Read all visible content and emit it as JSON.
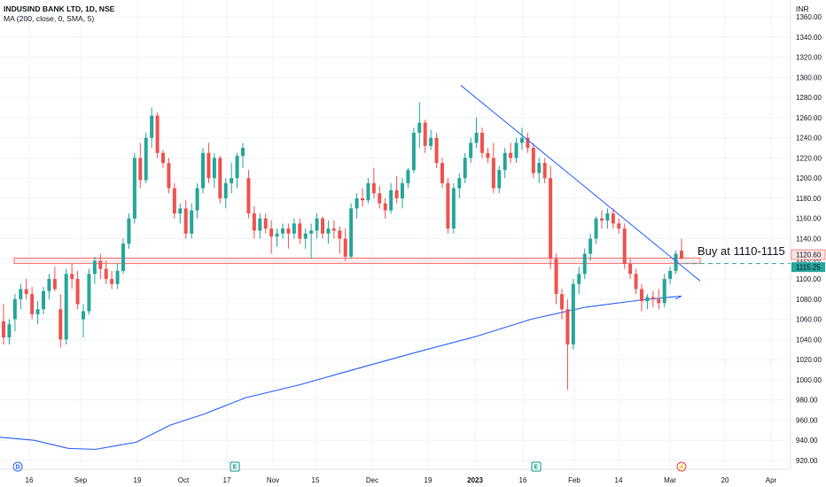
{
  "header": {
    "symbol_line": "INDUSIND BANK LTD, 1D, NSE",
    "indicator_line": "MA (200, close, 0, SMA, 5)"
  },
  "currency": "INR",
  "annotation": {
    "text": "Buy at 1110-1115",
    "price_tags": [
      "1120.60",
      "1115.25"
    ]
  },
  "events": [
    {
      "label": "D",
      "color": "#2962ff"
    },
    {
      "label": "E",
      "color": "#089981"
    },
    {
      "label": "E",
      "color": "#089981"
    },
    {
      "label": "⚡",
      "color": "#f23645"
    }
  ],
  "colors": {
    "up": "#26a69a",
    "down": "#ef5350",
    "ma": "#2962ff",
    "trendline": "#2962ff",
    "zone_fill": "#fce4e4",
    "zone_border": "#ef5350",
    "dashed": "#26a69a"
  },
  "chart_data": {
    "type": "candlestick",
    "title": "INDUSIND BANK LTD, 1D, NSE",
    "ylim": [
      912,
      1368
    ],
    "y_ticks": [
      920,
      940,
      960,
      980,
      1000,
      1020,
      1040,
      1060,
      1080,
      1100,
      1120,
      1140,
      1160,
      1180,
      1200,
      1220,
      1240,
      1260,
      1280,
      1300,
      1320,
      1340,
      1360
    ],
    "x_tick_labels": [
      "16",
      "Sep",
      "19",
      "Oct",
      "17",
      "Nov",
      "15",
      "Dec",
      "19",
      "2023",
      "16",
      "Feb",
      "14",
      "Mar",
      "20",
      "Apr"
    ],
    "grid": true,
    "candles": [
      {
        "o": 1058,
        "h": 1075,
        "l": 1035,
        "c": 1042
      },
      {
        "o": 1042,
        "h": 1060,
        "l": 1035,
        "c": 1055
      },
      {
        "o": 1060,
        "h": 1085,
        "l": 1048,
        "c": 1080
      },
      {
        "o": 1080,
        "h": 1095,
        "l": 1070,
        "c": 1090
      },
      {
        "o": 1090,
        "h": 1100,
        "l": 1080,
        "c": 1085
      },
      {
        "o": 1085,
        "h": 1092,
        "l": 1060,
        "c": 1065
      },
      {
        "o": 1065,
        "h": 1078,
        "l": 1055,
        "c": 1070
      },
      {
        "o": 1070,
        "h": 1092,
        "l": 1065,
        "c": 1088
      },
      {
        "o": 1088,
        "h": 1105,
        "l": 1080,
        "c": 1100
      },
      {
        "o": 1100,
        "h": 1112,
        "l": 1088,
        "c": 1090
      },
      {
        "o": 1070,
        "h": 1085,
        "l": 1032,
        "c": 1040
      },
      {
        "o": 1040,
        "h": 1110,
        "l": 1035,
        "c": 1105
      },
      {
        "o": 1105,
        "h": 1115,
        "l": 1090,
        "c": 1100
      },
      {
        "o": 1100,
        "h": 1108,
        "l": 1070,
        "c": 1075
      },
      {
        "o": 1060,
        "h": 1075,
        "l": 1042,
        "c": 1068
      },
      {
        "o": 1068,
        "h": 1110,
        "l": 1065,
        "c": 1105
      },
      {
        "o": 1105,
        "h": 1122,
        "l": 1095,
        "c": 1118
      },
      {
        "o": 1118,
        "h": 1125,
        "l": 1100,
        "c": 1110
      },
      {
        "o": 1110,
        "h": 1118,
        "l": 1095,
        "c": 1100
      },
      {
        "o": 1100,
        "h": 1108,
        "l": 1090,
        "c": 1095
      },
      {
        "o": 1095,
        "h": 1115,
        "l": 1090,
        "c": 1108
      },
      {
        "o": 1108,
        "h": 1140,
        "l": 1105,
        "c": 1135
      },
      {
        "o": 1135,
        "h": 1165,
        "l": 1130,
        "c": 1160
      },
      {
        "o": 1160,
        "h": 1225,
        "l": 1155,
        "c": 1220
      },
      {
        "o": 1220,
        "h": 1235,
        "l": 1190,
        "c": 1198
      },
      {
        "o": 1198,
        "h": 1245,
        "l": 1195,
        "c": 1240
      },
      {
        "o": 1240,
        "h": 1270,
        "l": 1230,
        "c": 1262
      },
      {
        "o": 1262,
        "h": 1265,
        "l": 1220,
        "c": 1225
      },
      {
        "o": 1225,
        "h": 1228,
        "l": 1210,
        "c": 1215
      },
      {
        "o": 1215,
        "h": 1220,
        "l": 1185,
        "c": 1190
      },
      {
        "o": 1190,
        "h": 1195,
        "l": 1160,
        "c": 1165
      },
      {
        "o": 1165,
        "h": 1175,
        "l": 1155,
        "c": 1170
      },
      {
        "o": 1170,
        "h": 1178,
        "l": 1140,
        "c": 1145
      },
      {
        "o": 1145,
        "h": 1175,
        "l": 1140,
        "c": 1168
      },
      {
        "o": 1168,
        "h": 1195,
        "l": 1160,
        "c": 1190
      },
      {
        "o": 1190,
        "h": 1230,
        "l": 1185,
        "c": 1225
      },
      {
        "o": 1225,
        "h": 1235,
        "l": 1195,
        "c": 1200
      },
      {
        "o": 1200,
        "h": 1225,
        "l": 1190,
        "c": 1220
      },
      {
        "o": 1220,
        "h": 1222,
        "l": 1175,
        "c": 1180
      },
      {
        "o": 1180,
        "h": 1200,
        "l": 1170,
        "c": 1195
      },
      {
        "o": 1195,
        "h": 1215,
        "l": 1185,
        "c": 1200
      },
      {
        "o": 1200,
        "h": 1225,
        "l": 1190,
        "c": 1222
      },
      {
        "o": 1222,
        "h": 1235,
        "l": 1210,
        "c": 1230
      },
      {
        "o": 1200,
        "h": 1208,
        "l": 1160,
        "c": 1165
      },
      {
        "o": 1165,
        "h": 1172,
        "l": 1140,
        "c": 1148
      },
      {
        "o": 1148,
        "h": 1165,
        "l": 1140,
        "c": 1160
      },
      {
        "o": 1160,
        "h": 1165,
        "l": 1145,
        "c": 1150
      },
      {
        "o": 1150,
        "h": 1158,
        "l": 1125,
        "c": 1142
      },
      {
        "o": 1142,
        "h": 1150,
        "l": 1132,
        "c": 1145
      },
      {
        "o": 1145,
        "h": 1155,
        "l": 1140,
        "c": 1150
      },
      {
        "o": 1150,
        "h": 1155,
        "l": 1130,
        "c": 1145
      },
      {
        "o": 1145,
        "h": 1160,
        "l": 1140,
        "c": 1155
      },
      {
        "o": 1155,
        "h": 1160,
        "l": 1135,
        "c": 1140
      },
      {
        "o": 1140,
        "h": 1150,
        "l": 1130,
        "c": 1145
      },
      {
        "o": 1145,
        "h": 1155,
        "l": 1120,
        "c": 1148
      },
      {
        "o": 1148,
        "h": 1165,
        "l": 1140,
        "c": 1160
      },
      {
        "o": 1160,
        "h": 1162,
        "l": 1140,
        "c": 1145
      },
      {
        "o": 1145,
        "h": 1158,
        "l": 1135,
        "c": 1150
      },
      {
        "o": 1150,
        "h": 1158,
        "l": 1140,
        "c": 1148
      },
      {
        "o": 1148,
        "h": 1152,
        "l": 1125,
        "c": 1140
      },
      {
        "o": 1140,
        "h": 1150,
        "l": 1118,
        "c": 1122
      },
      {
        "o": 1122,
        "h": 1175,
        "l": 1120,
        "c": 1170
      },
      {
        "o": 1170,
        "h": 1185,
        "l": 1160,
        "c": 1180
      },
      {
        "o": 1180,
        "h": 1190,
        "l": 1172,
        "c": 1178
      },
      {
        "o": 1178,
        "h": 1200,
        "l": 1175,
        "c": 1195
      },
      {
        "o": 1195,
        "h": 1210,
        "l": 1180,
        "c": 1185
      },
      {
        "o": 1185,
        "h": 1192,
        "l": 1170,
        "c": 1175
      },
      {
        "o": 1175,
        "h": 1180,
        "l": 1160,
        "c": 1168
      },
      {
        "o": 1168,
        "h": 1195,
        "l": 1165,
        "c": 1188
      },
      {
        "o": 1188,
        "h": 1202,
        "l": 1175,
        "c": 1180
      },
      {
        "o": 1180,
        "h": 1200,
        "l": 1170,
        "c": 1195
      },
      {
        "o": 1195,
        "h": 1210,
        "l": 1190,
        "c": 1208
      },
      {
        "o": 1208,
        "h": 1250,
        "l": 1205,
        "c": 1245
      },
      {
        "o": 1245,
        "h": 1275,
        "l": 1230,
        "c": 1255
      },
      {
        "o": 1255,
        "h": 1258,
        "l": 1225,
        "c": 1232
      },
      {
        "o": 1232,
        "h": 1248,
        "l": 1228,
        "c": 1240
      },
      {
        "o": 1240,
        "h": 1245,
        "l": 1210,
        "c": 1215
      },
      {
        "o": 1215,
        "h": 1220,
        "l": 1190,
        "c": 1195
      },
      {
        "o": 1195,
        "h": 1200,
        "l": 1145,
        "c": 1150
      },
      {
        "o": 1150,
        "h": 1195,
        "l": 1145,
        "c": 1190
      },
      {
        "o": 1190,
        "h": 1205,
        "l": 1180,
        "c": 1200
      },
      {
        "o": 1200,
        "h": 1225,
        "l": 1195,
        "c": 1220
      },
      {
        "o": 1220,
        "h": 1240,
        "l": 1215,
        "c": 1235
      },
      {
        "o": 1235,
        "h": 1260,
        "l": 1230,
        "c": 1245
      },
      {
        "o": 1245,
        "h": 1250,
        "l": 1220,
        "c": 1225
      },
      {
        "o": 1225,
        "h": 1230,
        "l": 1215,
        "c": 1220
      },
      {
        "o": 1220,
        "h": 1235,
        "l": 1185,
        "c": 1190
      },
      {
        "o": 1190,
        "h": 1212,
        "l": 1185,
        "c": 1208
      },
      {
        "o": 1208,
        "h": 1230,
        "l": 1200,
        "c": 1225
      },
      {
        "o": 1225,
        "h": 1235,
        "l": 1215,
        "c": 1220
      },
      {
        "o": 1220,
        "h": 1240,
        "l": 1215,
        "c": 1235
      },
      {
        "o": 1235,
        "h": 1250,
        "l": 1228,
        "c": 1240
      },
      {
        "o": 1240,
        "h": 1245,
        "l": 1225,
        "c": 1230
      },
      {
        "o": 1230,
        "h": 1235,
        "l": 1200,
        "c": 1205
      },
      {
        "o": 1205,
        "h": 1220,
        "l": 1195,
        "c": 1215
      },
      {
        "o": 1215,
        "h": 1220,
        "l": 1195,
        "c": 1200
      },
      {
        "o": 1200,
        "h": 1212,
        "l": 1110,
        "c": 1120
      },
      {
        "o": 1120,
        "h": 1125,
        "l": 1075,
        "c": 1085
      },
      {
        "o": 1085,
        "h": 1090,
        "l": 1060,
        "c": 1070
      },
      {
        "o": 1070,
        "h": 1080,
        "l": 990,
        "c": 1035
      },
      {
        "o": 1035,
        "h": 1100,
        "l": 1030,
        "c": 1095
      },
      {
        "o": 1095,
        "h": 1112,
        "l": 1085,
        "c": 1105
      },
      {
        "o": 1105,
        "h": 1130,
        "l": 1100,
        "c": 1125
      },
      {
        "o": 1125,
        "h": 1145,
        "l": 1118,
        "c": 1140
      },
      {
        "o": 1140,
        "h": 1162,
        "l": 1135,
        "c": 1160
      },
      {
        "o": 1160,
        "h": 1168,
        "l": 1150,
        "c": 1158
      },
      {
        "o": 1158,
        "h": 1170,
        "l": 1150,
        "c": 1165
      },
      {
        "o": 1165,
        "h": 1170,
        "l": 1150,
        "c": 1155
      },
      {
        "o": 1155,
        "h": 1160,
        "l": 1145,
        "c": 1150
      },
      {
        "o": 1150,
        "h": 1155,
        "l": 1110,
        "c": 1115
      },
      {
        "o": 1115,
        "h": 1120,
        "l": 1100,
        "c": 1105
      },
      {
        "o": 1105,
        "h": 1110,
        "l": 1085,
        "c": 1090
      },
      {
        "o": 1090,
        "h": 1095,
        "l": 1068,
        "c": 1078
      },
      {
        "o": 1078,
        "h": 1085,
        "l": 1070,
        "c": 1082
      },
      {
        "o": 1082,
        "h": 1088,
        "l": 1072,
        "c": 1080
      },
      {
        "o": 1080,
        "h": 1090,
        "l": 1070,
        "c": 1076
      },
      {
        "o": 1076,
        "h": 1105,
        "l": 1072,
        "c": 1100
      },
      {
        "o": 1100,
        "h": 1112,
        "l": 1095,
        "c": 1108
      },
      {
        "o": 1108,
        "h": 1128,
        "l": 1105,
        "c": 1125
      },
      {
        "o": 1128,
        "h": 1140,
        "l": 1120,
        "c": 1120
      }
    ],
    "ma200": [
      {
        "x": 0,
        "y": 943
      },
      {
        "x": 0.05,
        "y": 940
      },
      {
        "x": 0.1,
        "y": 932
      },
      {
        "x": 0.14,
        "y": 931
      },
      {
        "x": 0.2,
        "y": 938
      },
      {
        "x": 0.25,
        "y": 955
      },
      {
        "x": 0.3,
        "y": 966
      },
      {
        "x": 0.36,
        "y": 982
      },
      {
        "x": 0.44,
        "y": 995
      },
      {
        "x": 0.53,
        "y": 1012
      },
      {
        "x": 0.61,
        "y": 1027
      },
      {
        "x": 0.7,
        "y": 1043
      },
      {
        "x": 0.78,
        "y": 1060
      },
      {
        "x": 0.86,
        "y": 1072
      },
      {
        "x": 0.94,
        "y": 1079
      },
      {
        "x": 1.0,
        "y": 1083
      }
    ],
    "trendline": {
      "from": {
        "x": 0.61,
        "y": 1292
      },
      "to": {
        "x": 1.0,
        "y": 1098
      }
    },
    "zone": {
      "low": 1115.25,
      "high": 1120.6
    }
  }
}
